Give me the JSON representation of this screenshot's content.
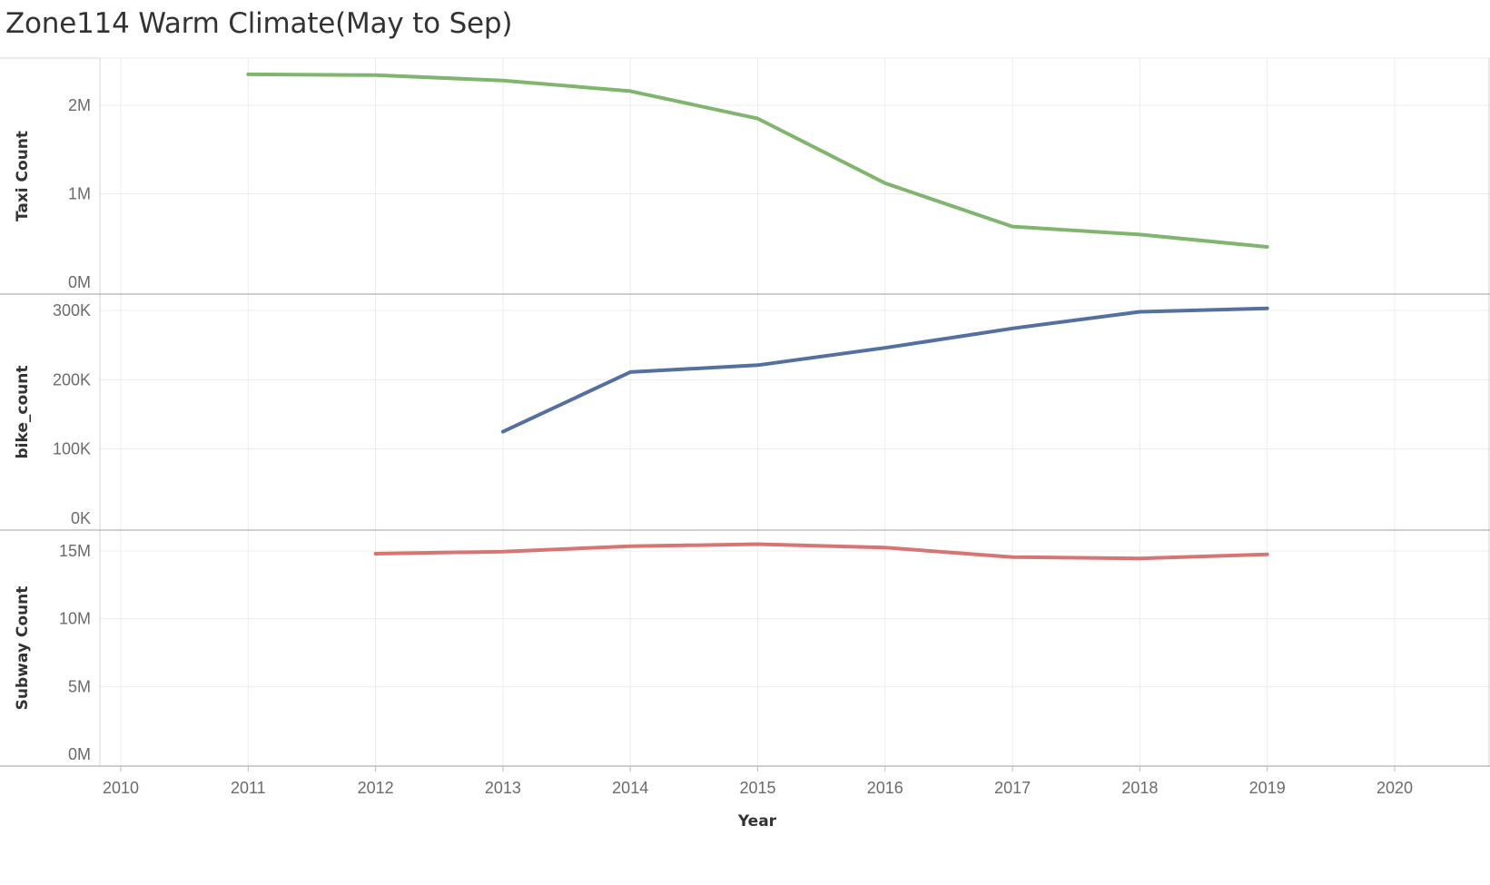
{
  "title": "Zone114 Warm Climate(May to Sep)",
  "chart_data": {
    "type": "line",
    "title": "Zone114 Warm Climate(May to Sep)",
    "xlabel": "Year",
    "xlim": [
      2010,
      2020
    ],
    "x_ticks": [
      2010,
      2011,
      2012,
      2013,
      2014,
      2015,
      2016,
      2017,
      2018,
      2019,
      2020
    ],
    "grid": true,
    "panels": [
      {
        "ylabel": "Taxi Count",
        "ylim": [
          0,
          2500000
        ],
        "y_ticks": [
          0,
          1000000,
          2000000
        ],
        "y_tick_labels": [
          "0M",
          "1M",
          "2M"
        ],
        "color": "#80b56e",
        "x": [
          2011,
          2012,
          2013,
          2014,
          2015,
          2016,
          2017,
          2018,
          2019
        ],
        "values": [
          2350000,
          2340000,
          2280000,
          2160000,
          1850000,
          1120000,
          630000,
          540000,
          400000
        ]
      },
      {
        "ylabel": "bike_count",
        "ylim": [
          0,
          310000
        ],
        "y_ticks": [
          0,
          100000,
          200000,
          300000
        ],
        "y_tick_labels": [
          "0K",
          "100K",
          "200K",
          "300K"
        ],
        "color": "#5470a0",
        "x": [
          2013,
          2014,
          2015,
          2016,
          2017,
          2018,
          2019
        ],
        "values": [
          125000,
          211000,
          221000,
          246000,
          274000,
          298000,
          303000
        ]
      },
      {
        "ylabel": "Subway Count",
        "ylim": [
          0,
          15800000
        ],
        "y_ticks": [
          0,
          5000000,
          10000000,
          15000000
        ],
        "y_tick_labels": [
          "0M",
          "5M",
          "10M",
          "15M"
        ],
        "color": "#d77575",
        "x": [
          2012,
          2013,
          2014,
          2015,
          2016,
          2017,
          2018,
          2019
        ],
        "values": [
          14800000,
          14950000,
          15350000,
          15500000,
          15250000,
          14550000,
          14450000,
          14750000
        ]
      }
    ]
  }
}
